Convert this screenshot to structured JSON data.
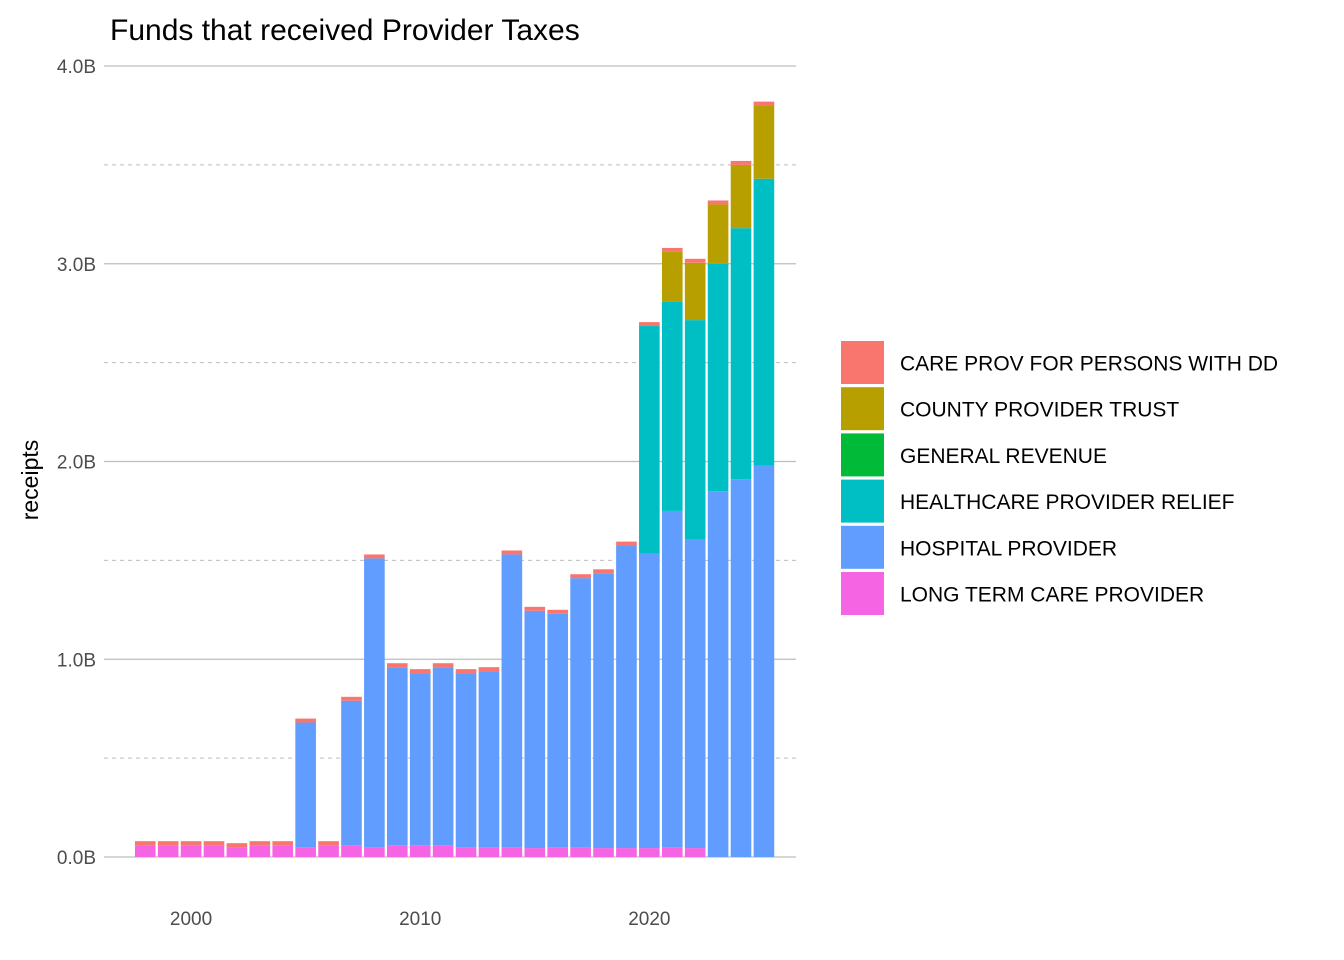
{
  "chart_data": {
    "type": "bar",
    "stacked": true,
    "title": "Funds that received Provider Taxes",
    "xlabel": "",
    "ylabel": "receipts",
    "x": [
      1998,
      1999,
      2000,
      2001,
      2002,
      2003,
      2004,
      2005,
      2006,
      2007,
      2008,
      2009,
      2010,
      2011,
      2012,
      2013,
      2014,
      2015,
      2016,
      2017,
      2018,
      2019,
      2020,
      2021,
      2022,
      2023,
      2024,
      2025
    ],
    "xticks": [
      2000,
      2010,
      2020
    ],
    "xtick_labels": [
      "2000",
      "2010",
      "2020"
    ],
    "yticks": [
      0,
      1,
      2,
      3,
      4
    ],
    "ytick_labels": [
      "0.0B",
      "1.0B",
      "2.0B",
      "3.0B",
      "4.0B"
    ],
    "xlim": [
      1996.2,
      2026.4
    ],
    "ylim": [
      0,
      4
    ],
    "y_unit": "B",
    "grid": true,
    "legend_position": "right",
    "series": [
      {
        "name": "LONG TERM CARE PROVIDER",
        "color": "#F564E3",
        "values": [
          0.06,
          0.06,
          0.06,
          0.06,
          0.05,
          0.06,
          0.06,
          0.05,
          0.06,
          0.06,
          0.05,
          0.06,
          0.06,
          0.06,
          0.05,
          0.05,
          0.05,
          0.045,
          0.05,
          0.05,
          0.045,
          0.045,
          0.045,
          0.05,
          0.045,
          0.0,
          0.0,
          0.0
        ]
      },
      {
        "name": "HOSPITAL PROVIDER",
        "color": "#619CFF",
        "values": [
          0.0,
          0.0,
          0.0,
          0.0,
          0.0,
          0.0,
          0.0,
          0.63,
          0.0,
          0.73,
          1.46,
          0.9,
          0.87,
          0.9,
          0.88,
          0.89,
          1.48,
          1.2,
          1.18,
          1.36,
          1.39,
          1.53,
          1.49,
          1.7,
          1.56,
          1.85,
          1.91,
          1.98
        ]
      },
      {
        "name": "HEALTHCARE PROVIDER RELIEF",
        "color": "#00BFC4",
        "values": [
          0,
          0,
          0,
          0,
          0,
          0,
          0,
          0,
          0,
          0,
          0,
          0,
          0,
          0,
          0,
          0,
          0,
          0,
          0,
          0,
          0,
          0,
          1.15,
          1.06,
          1.11,
          1.15,
          1.27,
          1.45
        ]
      },
      {
        "name": "GENERAL REVENUE",
        "color": "#00BA38",
        "values": [
          0,
          0,
          0,
          0,
          0,
          0,
          0,
          0,
          0,
          0,
          0,
          0,
          0,
          0,
          0,
          0,
          0,
          0,
          0,
          0,
          0,
          0,
          0,
          0,
          0,
          0,
          0,
          0
        ]
      },
      {
        "name": "COUNTY PROVIDER TRUST",
        "color": "#B79F00",
        "values": [
          0,
          0,
          0,
          0,
          0,
          0,
          0,
          0,
          0,
          0,
          0,
          0,
          0,
          0,
          0,
          0,
          0,
          0,
          0,
          0,
          0,
          0,
          0,
          0.25,
          0.29,
          0.3,
          0.32,
          0.37
        ]
      },
      {
        "name": "CARE PROV FOR PERSONS WITH DD",
        "color": "#F8766D",
        "values": [
          0.02,
          0.02,
          0.02,
          0.02,
          0.02,
          0.02,
          0.02,
          0.02,
          0.02,
          0.02,
          0.02,
          0.02,
          0.02,
          0.02,
          0.02,
          0.02,
          0.02,
          0.02,
          0.02,
          0.02,
          0.02,
          0.02,
          0.02,
          0.02,
          0.02,
          0.02,
          0.02,
          0.02
        ]
      }
    ],
    "legend_order": [
      "CARE PROV FOR PERSONS WITH DD",
      "COUNTY PROVIDER TRUST",
      "GENERAL REVENUE",
      "HEALTHCARE PROVIDER RELIEF",
      "HOSPITAL PROVIDER",
      "LONG TERM CARE PROVIDER"
    ]
  }
}
